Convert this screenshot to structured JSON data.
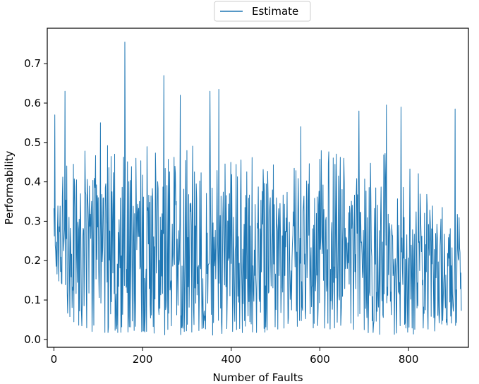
{
  "chart_data": {
    "type": "line",
    "title": "",
    "xlabel": "Number of Faults",
    "ylabel": "Performability",
    "xlim": [
      -15,
      935
    ],
    "ylim": [
      -0.02,
      0.79
    ],
    "xticks": [
      0,
      200,
      400,
      600,
      800
    ],
    "yticks": [
      0.0,
      0.1,
      0.2,
      0.3,
      0.4,
      0.5,
      0.6,
      0.7
    ],
    "grid": false,
    "legend_position": "top-center",
    "n_points": 920,
    "series": [
      {
        "name": "Estimate",
        "color": "#1f77b4",
        "envelope": {
          "x": [
            0,
            50,
            100,
            150,
            200,
            250,
            300,
            350,
            400,
            450,
            500,
            550,
            600,
            650,
            700,
            750,
            800,
            850,
            900,
            920
          ],
          "low": [
            0.15,
            0.01,
            0.02,
            0.01,
            0.01,
            0.01,
            0.01,
            0.01,
            0.01,
            0.01,
            0.02,
            0.02,
            0.01,
            0.02,
            0.01,
            0.01,
            0.01,
            0.01,
            0.02,
            0.06
          ],
          "typical": [
            0.35,
            0.4,
            0.42,
            0.45,
            0.42,
            0.4,
            0.42,
            0.4,
            0.38,
            0.4,
            0.36,
            0.42,
            0.4,
            0.4,
            0.38,
            0.4,
            0.38,
            0.3,
            0.25,
            0.3
          ]
        },
        "peaks": [
          {
            "x": 2,
            "y": 0.57
          },
          {
            "x": 25,
            "y": 0.63
          },
          {
            "x": 105,
            "y": 0.55
          },
          {
            "x": 160,
            "y": 0.755
          },
          {
            "x": 248,
            "y": 0.67
          },
          {
            "x": 285,
            "y": 0.62
          },
          {
            "x": 352,
            "y": 0.63
          },
          {
            "x": 372,
            "y": 0.635
          },
          {
            "x": 557,
            "y": 0.54
          },
          {
            "x": 688,
            "y": 0.58
          },
          {
            "x": 750,
            "y": 0.595
          },
          {
            "x": 783,
            "y": 0.59
          },
          {
            "x": 905,
            "y": 0.585
          }
        ]
      }
    ]
  }
}
